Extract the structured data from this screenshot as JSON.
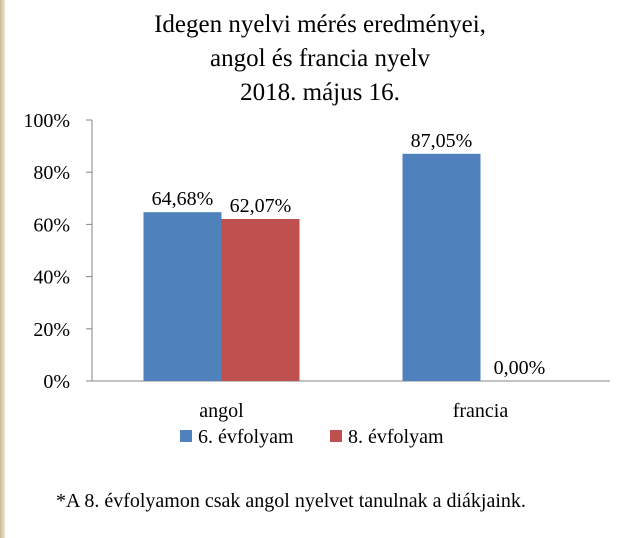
{
  "chart_data": {
    "type": "bar",
    "title_lines": [
      "Idegen nyelvi mérés eredményei,",
      "angol és francia nyelv",
      "2018. május 16."
    ],
    "categories": [
      "angol",
      "francia"
    ],
    "series": [
      {
        "name": "6. évfolyam",
        "color": "#4f81bd",
        "values": [
          64.68,
          87.05
        ],
        "labels": [
          "64,68%",
          "87,05%"
        ]
      },
      {
        "name": "8. évfolyam",
        "color": "#c0504d",
        "values": [
          62.07,
          0.0
        ],
        "labels": [
          "62,07%",
          "0,00%"
        ]
      }
    ],
    "y_ticks": [
      "0%",
      "20%",
      "40%",
      "60%",
      "80%",
      "100%"
    ],
    "ylim": [
      0,
      100
    ],
    "grid": false,
    "legend_position": "bottom"
  },
  "footnote": "*A 8. évfolyamon csak angol nyelvet tanulnak a diákjaink."
}
